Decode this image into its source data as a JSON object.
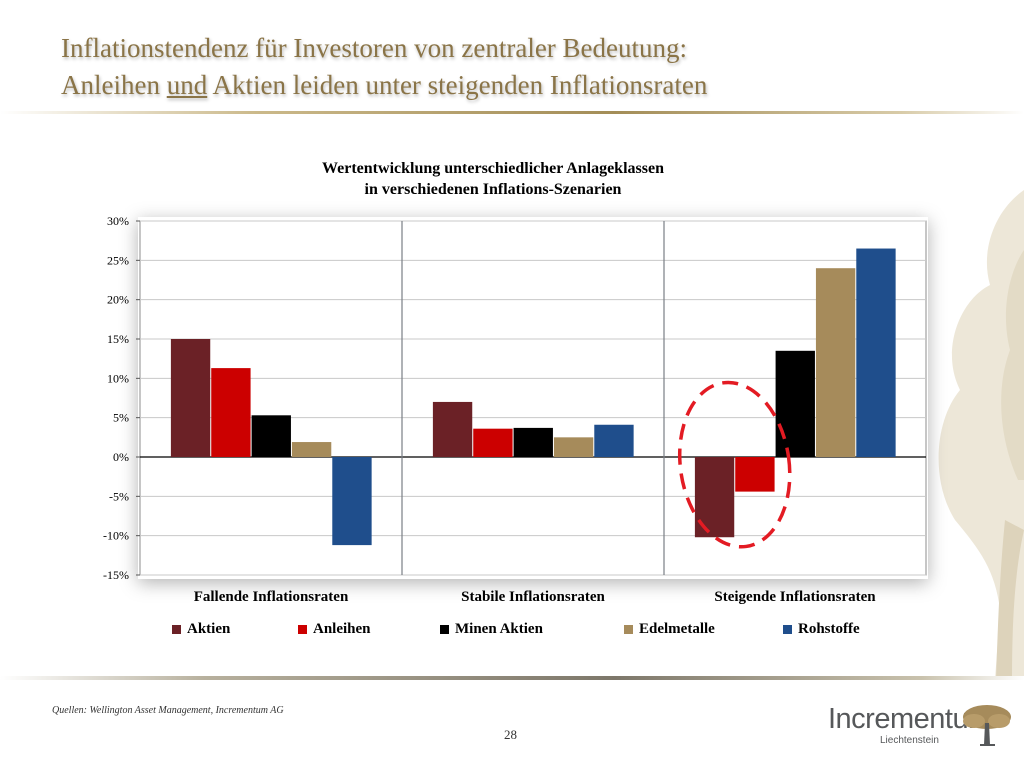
{
  "slide": {
    "title_line1": "Inflationstendenz für Investoren von zentraler Bedeutung:",
    "title_line2_part1": "Anleihen ",
    "title_line2_underlined": "und",
    "title_line2_part2": " Aktien leiden unter steigenden Inflationsraten",
    "source": "Quellen: Wellington Asset Management, Incrementum AG",
    "page_number": "28",
    "logo_text": "Incrementum",
    "logo_subtext": "Liechtenstein"
  },
  "colors": {
    "title": "#8a7447",
    "Aktien": "#6b2126",
    "Anleihen": "#cc0000",
    "Minen Aktien": "#000000",
    "Edelmetalle": "#a68b5b",
    "Rohstoffe": "#1f4e8c",
    "highlight": "#e31b23"
  },
  "chart_data": {
    "type": "bar",
    "title_line1": "Wertentwicklung unterschiedlicher Anlageklassen",
    "title_line2": "in verschiedenen Inflations-Szenarien",
    "categories": [
      "Fallende Inflationsraten",
      "Stabile Inflationsraten",
      "Steigende Inflationsraten"
    ],
    "series": [
      {
        "name": "Aktien",
        "values": [
          15.0,
          7.0,
          -10.2
        ]
      },
      {
        "name": "Anleihen",
        "values": [
          11.3,
          3.6,
          -4.4
        ]
      },
      {
        "name": "Minen Aktien",
        "values": [
          5.3,
          3.7,
          13.5
        ]
      },
      {
        "name": "Edelmetalle",
        "values": [
          1.9,
          2.5,
          24.0
        ]
      },
      {
        "name": "Rohstoffe",
        "values": [
          -11.2,
          4.1,
          26.5
        ]
      }
    ],
    "ylim": [
      -15,
      30
    ],
    "yticks": [
      30,
      25,
      20,
      15,
      10,
      5,
      0,
      -5,
      -10,
      -15
    ],
    "ytick_labels": [
      "30%",
      "25%",
      "20%",
      "15%",
      "10%",
      "5%",
      "0%",
      "-5%",
      "-10%",
      "-15%"
    ],
    "grid": true,
    "legend_position": "bottom",
    "annotation": "red dashed ellipse around Aktien and Anleihen bars in Steigende Inflationsraten"
  }
}
